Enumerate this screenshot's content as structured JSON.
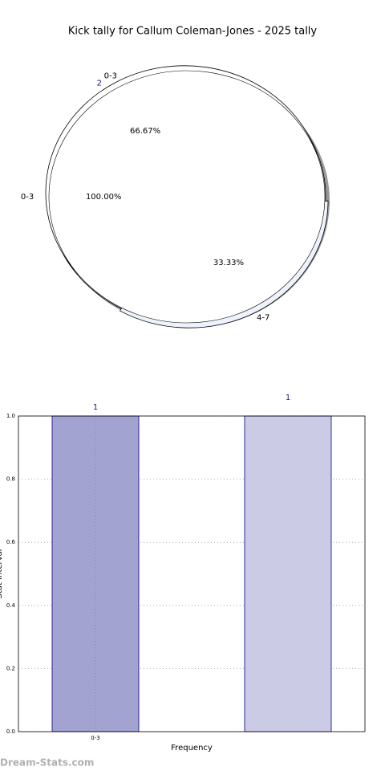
{
  "chart_data": [
    {
      "type": "pie",
      "title": "Kick tally for Callum Coleman-Jones - 2025 tally",
      "categories": [
        "0-3",
        "4-7"
      ],
      "values": [
        66.67,
        33.33
      ],
      "value_labels": [
        "66.67%",
        "33.33%"
      ],
      "colors": [
        "#ffffff",
        "#eef2fc"
      ],
      "annotations": [
        "2"
      ],
      "inner": {
        "categories": [
          "0-3"
        ],
        "values": [
          100
        ],
        "value_labels": [
          "100.00%"
        ],
        "colors": [
          "#ffffff"
        ]
      }
    },
    {
      "type": "bar",
      "categories": [
        "0-3",
        null
      ],
      "values": [
        1,
        1
      ],
      "colors": [
        "#a3a3d1",
        "#cbcbe6"
      ],
      "xlabel": "Frequency",
      "ylabel": "Stat Interval",
      "ylim": [
        0,
        1
      ],
      "yticks": [
        {
          "value": 0,
          "label": "0.0"
        },
        {
          "value": 0.2,
          "label": "0.2"
        },
        {
          "value": 0.4,
          "label": "0.4"
        },
        {
          "value": 0.6,
          "label": "0.6"
        },
        {
          "value": 0.8,
          "label": "0.8"
        },
        {
          "value": 1,
          "label": "1.0"
        }
      ],
      "grid": true
    }
  ],
  "watermark": "Dream-Stats.com"
}
